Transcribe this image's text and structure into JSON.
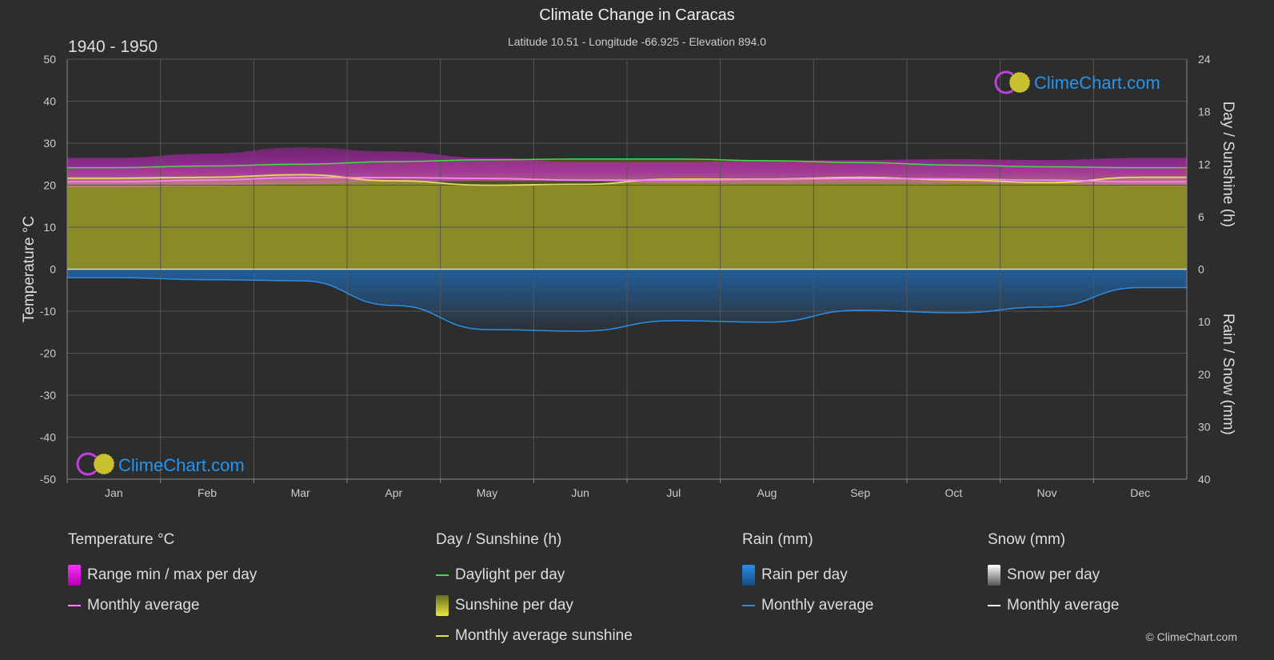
{
  "header": {
    "title": "Climate Change in Caracas",
    "subtitle": "Latitude 10.51 - Longitude -66.925 - Elevation 894.0",
    "period": "1940 - 1950"
  },
  "watermark": {
    "text": "ClimeChart.com"
  },
  "copyright": "© ClimeChart.com",
  "colors": {
    "background": "#2d2d2d",
    "grid": "#555555",
    "temp_range": "#d020d0",
    "temp_avg": "#ff80ff",
    "daylight": "#40e040",
    "sunshine_fill": "#9a9a2a",
    "sunshine_avg": "#e0e060",
    "rain": "#1e7ad0",
    "rain_avg": "#2a8ee8",
    "snow": "#ffffff",
    "brand": "#2196f3"
  },
  "chart_data": {
    "type": "area",
    "categories": [
      "Jan",
      "Feb",
      "Mar",
      "Apr",
      "May",
      "Jun",
      "Jul",
      "Aug",
      "Sep",
      "Oct",
      "Nov",
      "Dec"
    ],
    "axes": {
      "left": {
        "label": "Temperature °C",
        "ylim": [
          -50,
          50
        ],
        "ticks": [
          50,
          40,
          30,
          20,
          10,
          0,
          -10,
          -20,
          -30,
          -40,
          -50
        ]
      },
      "right_top": {
        "label": "Day / Sunshine (h)",
        "ylim": [
          0,
          24
        ],
        "ticks": [
          24,
          18,
          12,
          6,
          0
        ]
      },
      "right_bottom": {
        "label": "Rain / Snow (mm)",
        "ylim": [
          0,
          40
        ],
        "ticks": [
          0,
          10,
          20,
          30,
          40
        ]
      }
    },
    "grid": true,
    "series": [
      {
        "name": "Range min / max per day",
        "unit": "°C",
        "min": [
          19.5,
          19.8,
          20.3,
          20.8,
          21.0,
          21.0,
          20.5,
          20.5,
          20.6,
          20.5,
          20.3,
          19.8
        ],
        "max": [
          26.5,
          27.5,
          29.0,
          28.0,
          26.5,
          25.5,
          25.5,
          25.8,
          26.0,
          26.2,
          26.0,
          26.5
        ]
      },
      {
        "name": "Monthly average",
        "unit": "°C",
        "values": [
          20.8,
          21.2,
          21.8,
          21.8,
          21.6,
          21.2,
          21.2,
          21.4,
          21.6,
          21.5,
          21.2,
          20.8
        ]
      },
      {
        "name": "Daylight per day",
        "unit": "h",
        "values": [
          11.6,
          11.8,
          12.0,
          12.3,
          12.5,
          12.6,
          12.6,
          12.4,
          12.2,
          11.9,
          11.7,
          11.6
        ]
      },
      {
        "name": "Monthly average sunshine",
        "unit": "h",
        "values": [
          10.4,
          10.5,
          10.8,
          10.1,
          9.6,
          9.7,
          10.3,
          10.3,
          10.5,
          10.2,
          9.9,
          10.5
        ]
      },
      {
        "name": "Rain monthly average",
        "unit": "mm",
        "values": [
          1.6,
          2.0,
          2.2,
          6.9,
          11.5,
          11.8,
          9.8,
          10.1,
          7.8,
          8.3,
          7.2,
          3.5
        ]
      },
      {
        "name": "Snow monthly average",
        "unit": "mm",
        "values": [
          0,
          0,
          0,
          0,
          0,
          0,
          0,
          0,
          0,
          0,
          0,
          0
        ]
      }
    ]
  },
  "legend": {
    "temperature": {
      "title": "Temperature °C",
      "items": [
        "Range min / max per day",
        "Monthly average"
      ]
    },
    "sunshine": {
      "title": "Day / Sunshine (h)",
      "items": [
        "Daylight per day",
        "Sunshine per day",
        "Monthly average sunshine"
      ]
    },
    "rain": {
      "title": "Rain (mm)",
      "items": [
        "Rain per day",
        "Monthly average"
      ]
    },
    "snow": {
      "title": "Snow (mm)",
      "items": [
        "Snow per day",
        "Monthly average"
      ]
    }
  }
}
